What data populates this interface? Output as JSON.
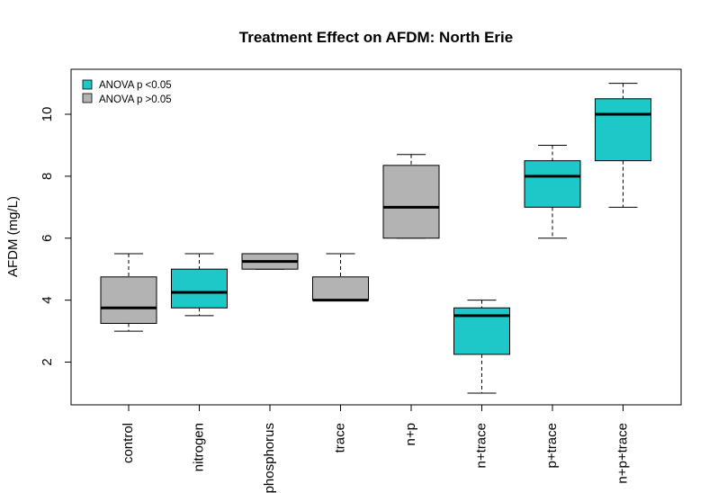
{
  "chart_data": {
    "type": "boxplot",
    "title": "Treatment Effect on AFDM: North Erie",
    "xlabel": "",
    "ylabel": "AFDM (mg/L)",
    "ylim": [
      0.5,
      11.4
    ],
    "yticks": [
      2,
      4,
      6,
      8,
      10
    ],
    "grid": false,
    "legend_position": "top-left",
    "legend": [
      {
        "label": "ANOVA p <0.05",
        "color": "#1cc8c8"
      },
      {
        "label": "ANOVA p >0.05",
        "color": "#b3b3b3"
      }
    ],
    "categories": [
      "control",
      "nitrogen",
      "phosphorus",
      "trace",
      "n+p",
      "n+trace",
      "p+trace",
      "n+p+trace"
    ],
    "boxes": [
      {
        "category": "control",
        "whisker_low": 3.0,
        "q1": 3.25,
        "median": 3.75,
        "q3": 4.75,
        "whisker_high": 5.5,
        "significant": false
      },
      {
        "category": "nitrogen",
        "whisker_low": 3.5,
        "q1": 3.75,
        "median": 4.25,
        "q3": 5.0,
        "whisker_high": 5.5,
        "significant": true
      },
      {
        "category": "phosphorus",
        "whisker_low": 5.0,
        "q1": 5.0,
        "median": 5.25,
        "q3": 5.5,
        "whisker_high": 5.5,
        "significant": false
      },
      {
        "category": "trace",
        "whisker_low": 4.0,
        "q1": 4.0,
        "median": 4.0,
        "q3": 4.75,
        "whisker_high": 5.5,
        "significant": false
      },
      {
        "category": "n+p",
        "whisker_low": 6.0,
        "q1": 6.0,
        "median": 7.0,
        "q3": 8.35,
        "whisker_high": 8.7,
        "significant": false
      },
      {
        "category": "n+trace",
        "whisker_low": 1.0,
        "q1": 2.25,
        "median": 3.5,
        "q3": 3.75,
        "whisker_high": 4.0,
        "significant": true
      },
      {
        "category": "p+trace",
        "whisker_low": 6.0,
        "q1": 7.0,
        "median": 8.0,
        "q3": 8.5,
        "whisker_high": 9.0,
        "significant": true
      },
      {
        "category": "n+p+trace",
        "whisker_low": 7.0,
        "q1": 8.5,
        "median": 10.0,
        "q3": 10.5,
        "whisker_high": 11.0,
        "significant": true
      }
    ]
  }
}
